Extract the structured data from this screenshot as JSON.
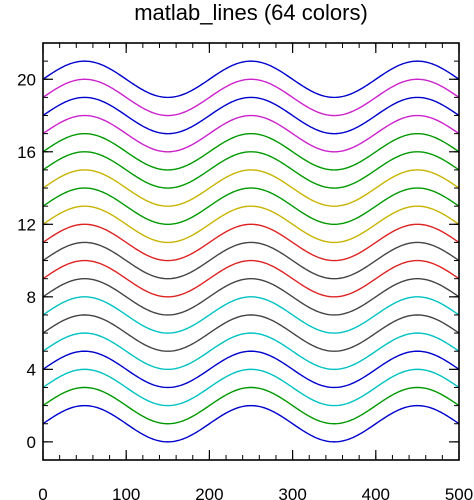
{
  "chart_data": {
    "type": "line",
    "title": "matlab_lines (64 colors)",
    "xlabel": "",
    "ylabel": "",
    "xlim": [
      0,
      500
    ],
    "ylim": [
      -1,
      22
    ],
    "x_ticks": [
      0,
      100,
      200,
      300,
      400,
      500
    ],
    "x_tick_labels": [
      "0",
      "100",
      "200",
      "300",
      "400",
      "500"
    ],
    "y_ticks": [
      0,
      4,
      8,
      12,
      16,
      20
    ],
    "y_tick_labels": [
      "0",
      "4",
      "8",
      "12",
      "16",
      "20"
    ],
    "grid": false,
    "curve": "y = offset + sin(2*pi*x/200)",
    "x_range": [
      0,
      500
    ],
    "series": [
      {
        "offset": 1,
        "color": "#0000cc"
      },
      {
        "offset": 2,
        "color": "#009900"
      },
      {
        "offset": 3,
        "color": "#00c2c2"
      },
      {
        "offset": 4,
        "color": "#0000cc"
      },
      {
        "offset": 5,
        "color": "#00c2c2"
      },
      {
        "offset": 6,
        "color": "#444444"
      },
      {
        "offset": 7,
        "color": "#00c2c2"
      },
      {
        "offset": 8,
        "color": "#444444"
      },
      {
        "offset": 9,
        "color": "#dd2222"
      },
      {
        "offset": 10,
        "color": "#444444"
      },
      {
        "offset": 11,
        "color": "#dd2222"
      },
      {
        "offset": 12,
        "color": "#c8b400"
      },
      {
        "offset": 13,
        "color": "#009900"
      },
      {
        "offset": 14,
        "color": "#c8b400"
      },
      {
        "offset": 15,
        "color": "#009900"
      },
      {
        "offset": 16,
        "color": "#009900"
      },
      {
        "offset": 17,
        "color": "#cc22cc"
      },
      {
        "offset": 18,
        "color": "#0000cc"
      },
      {
        "offset": 19,
        "color": "#cc22cc"
      },
      {
        "offset": 20,
        "color": "#0000cc"
      }
    ]
  }
}
